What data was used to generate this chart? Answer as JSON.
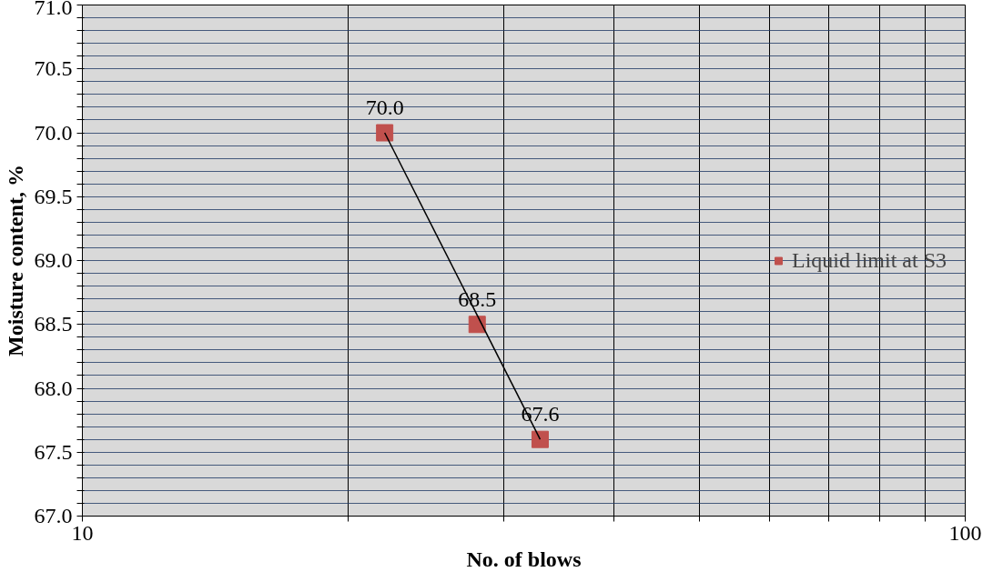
{
  "chart_data": {
    "type": "scatter",
    "xlabel": "No. of blows",
    "ylabel": "Moisture content, %",
    "log": "x",
    "xlim": [
      10,
      100
    ],
    "xticks": [
      10,
      {
        "value": 20,
        "label": null
      },
      {
        "value": 30,
        "label": null
      },
      {
        "value": 40,
        "label": null
      },
      {
        "value": 50,
        "label": null
      },
      {
        "value": 60,
        "label": null
      },
      {
        "value": 70,
        "label": null
      },
      {
        "value": 80,
        "label": null
      },
      {
        "value": 90,
        "label": null
      },
      100
    ],
    "ylim": [
      67,
      71
    ],
    "yticks": [
      {
        "value": 67,
        "label": "67.0"
      },
      {
        "value": 67.1,
        "label": null
      },
      {
        "value": 67.2,
        "label": null
      },
      {
        "value": 67.3,
        "label": null
      },
      {
        "value": 67.4,
        "label": null
      },
      {
        "value": 67.5,
        "label": "67.5"
      },
      {
        "value": 67.6,
        "label": null
      },
      {
        "value": 67.7,
        "label": null
      },
      {
        "value": 67.8,
        "label": null
      },
      {
        "value": 67.9,
        "label": null
      },
      {
        "value": 68,
        "label": "68.0"
      },
      {
        "value": 68.1,
        "label": null
      },
      {
        "value": 68.2,
        "label": null
      },
      {
        "value": 68.3,
        "label": null
      },
      {
        "value": 68.4,
        "label": null
      },
      {
        "value": 68.5,
        "label": "68.5"
      },
      {
        "value": 68.6,
        "label": null
      },
      {
        "value": 68.7,
        "label": null
      },
      {
        "value": 68.8,
        "label": null
      },
      {
        "value": 68.9,
        "label": null
      },
      {
        "value": 69,
        "label": "69.0"
      },
      {
        "value": 69.1,
        "label": null
      },
      {
        "value": 69.2,
        "label": null
      },
      {
        "value": 69.3,
        "label": null
      },
      {
        "value": 69.4,
        "label": null
      },
      {
        "value": 69.5,
        "label": "69.5"
      },
      {
        "value": 69.6,
        "label": null
      },
      {
        "value": 69.7,
        "label": null
      },
      {
        "value": 69.8,
        "label": null
      },
      {
        "value": 69.9,
        "label": null
      },
      {
        "value": 70,
        "label": "70.0"
      },
      {
        "value": 70.1,
        "label": null
      },
      {
        "value": 70.2,
        "label": null
      },
      {
        "value": 70.3,
        "label": null
      },
      {
        "value": 70.4,
        "label": null
      },
      {
        "value": 70.5,
        "label": "70.5"
      },
      {
        "value": 70.6,
        "label": null
      },
      {
        "value": 70.7,
        "label": null
      },
      {
        "value": 70.8,
        "label": null
      },
      {
        "value": 70.9,
        "label": null
      },
      {
        "value": 71,
        "label": "71.0"
      }
    ],
    "grid": true,
    "legend": "right",
    "marker": "square",
    "series": [
      {
        "name": "Liquid limit at S3",
        "color": "#c0504d",
        "x": [
          22,
          28,
          33
        ],
        "values": [
          70.0,
          68.5,
          67.6
        ],
        "value_labels": [
          "70.0",
          "68.5",
          "67.6"
        ]
      },
      {
        "type": "line",
        "color": "#000000",
        "marker": "none",
        "x": [
          22,
          33
        ],
        "values": [
          70.0,
          67.6
        ]
      }
    ]
  }
}
